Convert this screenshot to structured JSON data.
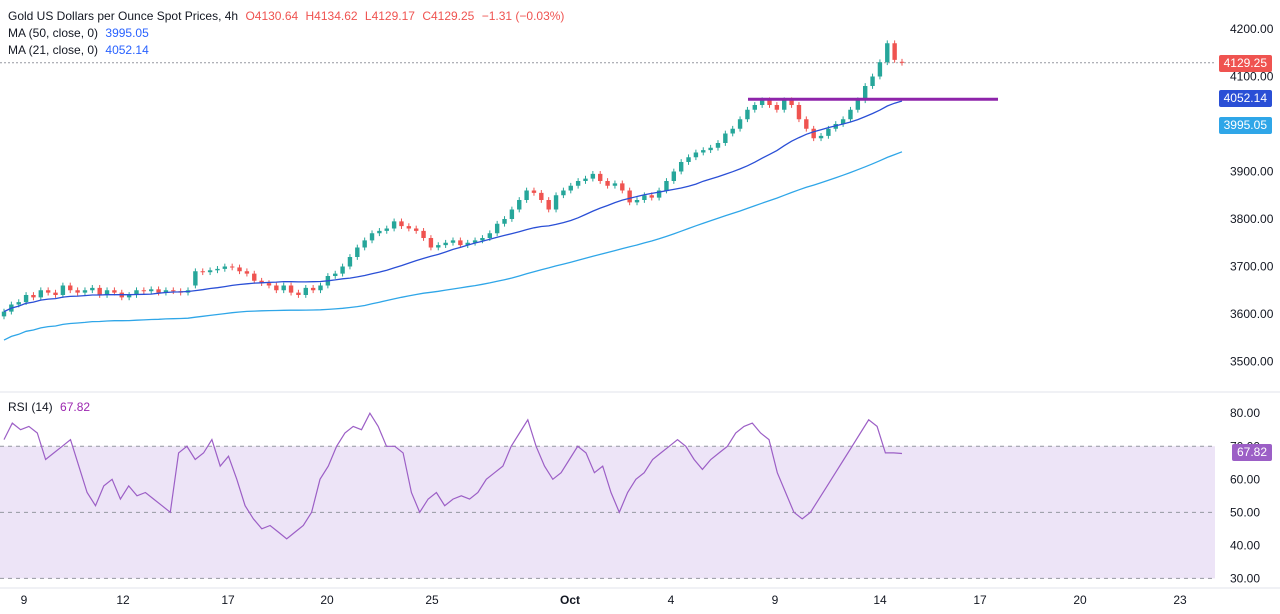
{
  "legend": {
    "title": "Gold US Dollars per Ounce Spot Prices, 4h",
    "open": "O4130.64",
    "high": "H4134.62",
    "low": "L4129.17",
    "close": "C4129.25",
    "change": "−1.31 (−0.03%)",
    "ma50_label": "MA (50, close, 0)",
    "ma50_value": "3995.05",
    "ma21_label": "MA (21, close, 0)",
    "ma21_value": "4052.14",
    "rsi_label": "RSI (14)",
    "rsi_value": "67.82"
  },
  "price_tags": {
    "last": "4129.25",
    "ma21": "4052.14",
    "ma50": "3995.05",
    "rsi": "67.82"
  },
  "colors": {
    "up": "#26a69a",
    "down": "#ef5350",
    "ma21": "#2a4fd6",
    "ma50": "#2fa6e8",
    "resistance": "#8e24aa",
    "rsi": "#9c5fc6",
    "rsi_band": "#ede4f7"
  },
  "chart_data": [
    {
      "type": "candlestick",
      "title": "Gold US Dollars per Ounce Spot Prices, 4h",
      "y_ticks": [
        "4200.00",
        "4100.00",
        "3900.00",
        "3800.00",
        "3700.00",
        "3600.00",
        "3500.00"
      ],
      "ylim": [
        3440,
        4240
      ],
      "x_ticks": [
        "9",
        "12",
        "17",
        "20",
        "25",
        "Oct",
        "4",
        "9",
        "14",
        "17",
        "20",
        "23"
      ],
      "resistance_level": 4052,
      "candles_close": [
        3605,
        3620,
        3625,
        3640,
        3635,
        3650,
        3645,
        3640,
        3660,
        3650,
        3645,
        3650,
        3655,
        3640,
        3650,
        3645,
        3635,
        3640,
        3650,
        3648,
        3652,
        3645,
        3650,
        3648,
        3645,
        3650,
        3690,
        3688,
        3692,
        3695,
        3700,
        3698,
        3690,
        3685,
        3670,
        3665,
        3660,
        3650,
        3660,
        3645,
        3640,
        3655,
        3650,
        3660,
        3680,
        3685,
        3700,
        3720,
        3740,
        3755,
        3770,
        3775,
        3780,
        3795,
        3785,
        3780,
        3775,
        3760,
        3740,
        3745,
        3750,
        3755,
        3745,
        3750,
        3755,
        3760,
        3770,
        3790,
        3800,
        3820,
        3840,
        3860,
        3855,
        3840,
        3820,
        3850,
        3860,
        3870,
        3880,
        3885,
        3895,
        3880,
        3870,
        3875,
        3860,
        3835,
        3840,
        3850,
        3845,
        3860,
        3880,
        3900,
        3920,
        3930,
        3940,
        3945,
        3950,
        3960,
        3980,
        3990,
        4010,
        4030,
        4040,
        4050,
        4040,
        4030,
        4050,
        4040,
        4010,
        3990,
        3970,
        3975,
        3990,
        4000,
        4010,
        4030,
        4050,
        4080,
        4100,
        4130,
        4170,
        4135,
        4129
      ],
      "candles_open": [
        3595,
        3605,
        3620,
        3625,
        3640,
        3635,
        3650,
        3645,
        3640,
        3660,
        3650,
        3645,
        3650,
        3655,
        3640,
        3650,
        3645,
        3635,
        3640,
        3650,
        3648,
        3652,
        3645,
        3650,
        3648,
        3645,
        3660,
        3690,
        3688,
        3692,
        3695,
        3700,
        3698,
        3690,
        3685,
        3670,
        3665,
        3660,
        3650,
        3660,
        3645,
        3640,
        3655,
        3650,
        3660,
        3680,
        3685,
        3700,
        3720,
        3740,
        3755,
        3770,
        3775,
        3780,
        3795,
        3785,
        3780,
        3775,
        3760,
        3740,
        3745,
        3750,
        3755,
        3745,
        3750,
        3755,
        3760,
        3770,
        3790,
        3800,
        3820,
        3840,
        3860,
        3855,
        3840,
        3820,
        3850,
        3860,
        3870,
        3880,
        3885,
        3895,
        3880,
        3870,
        3875,
        3860,
        3835,
        3840,
        3850,
        3845,
        3860,
        3880,
        3900,
        3920,
        3930,
        3940,
        3945,
        3950,
        3960,
        3980,
        3990,
        4010,
        4030,
        4040,
        4050,
        4040,
        4030,
        4050,
        4040,
        4010,
        3990,
        3970,
        3975,
        3990,
        4000,
        4010,
        4030,
        4050,
        4080,
        4100,
        4130,
        4170,
        4131
      ],
      "ma21_first": 3585,
      "ma21_last": 4052.14,
      "ma50_first": 3490,
      "ma50_last": 3995.05
    },
    {
      "type": "line",
      "title": "RSI (14)",
      "y_ticks": [
        "80.00",
        "70.00",
        "60.00",
        "50.00",
        "40.00",
        "30.00"
      ],
      "ylim": [
        28,
        84
      ],
      "reference_lines": [
        70,
        50,
        30
      ],
      "values": [
        72,
        77,
        75,
        76,
        74,
        66,
        68,
        70,
        72,
        64,
        56,
        52,
        58,
        60,
        54,
        58,
        55,
        56,
        54,
        52,
        50,
        68,
        70,
        66,
        68,
        72,
        64,
        67,
        60,
        52,
        48,
        45,
        46,
        44,
        42,
        44,
        46,
        50,
        60,
        64,
        70,
        74,
        76,
        75,
        80,
        76,
        70,
        70,
        68,
        56,
        50,
        54,
        56,
        52,
        54,
        55,
        54,
        56,
        60,
        62,
        64,
        70,
        74,
        78,
        70,
        64,
        60,
        62,
        66,
        70,
        68,
        62,
        64,
        56,
        50,
        56,
        60,
        62,
        66,
        68,
        70,
        72,
        70,
        66,
        63,
        66,
        68,
        70,
        74,
        76,
        77,
        74,
        72,
        62,
        56,
        50,
        48,
        50,
        54,
        58,
        62,
        66,
        70,
        74,
        78,
        76,
        68,
        68,
        67.82
      ]
    }
  ]
}
